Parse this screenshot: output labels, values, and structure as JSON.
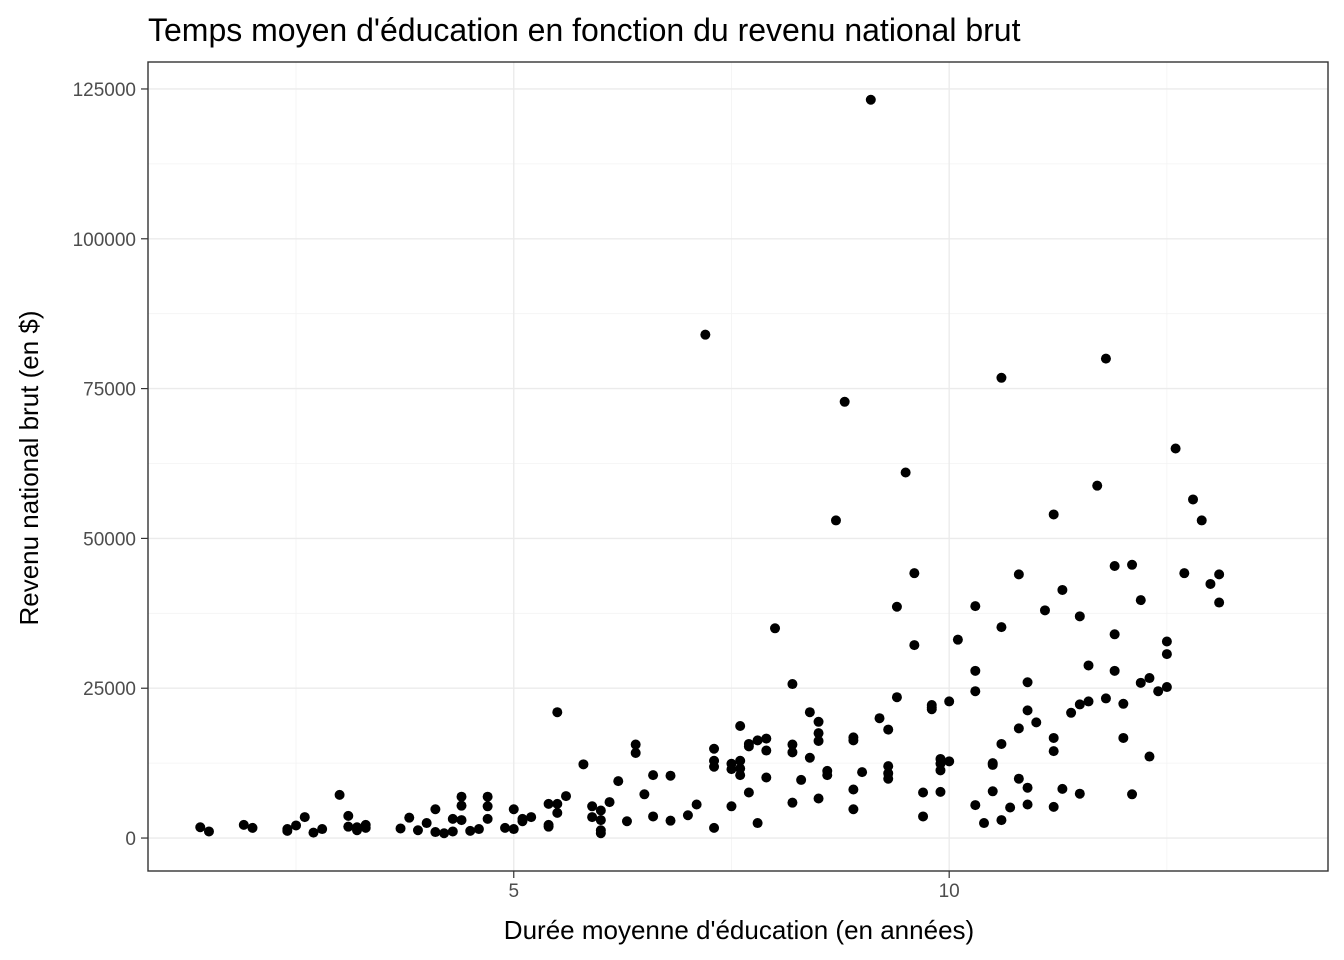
{
  "chart_data": {
    "type": "scatter",
    "title": "Temps moyen d'éducation en fonction du revenu national brut",
    "xlabel": "Durée moyenne d'éducation (en années)",
    "ylabel": "Revenu national brut (en $)",
    "xlim": [
      0.8,
      14.35
    ],
    "ylim": [
      -5500,
      129500
    ],
    "x_ticks": [
      5,
      10
    ],
    "x_tick_labels": [
      "5",
      "10"
    ],
    "y_ticks": [
      0,
      25000,
      50000,
      75000,
      100000,
      125000
    ],
    "y_tick_labels": [
      "0",
      "25000",
      "50000",
      "75000",
      "100000",
      "125000"
    ],
    "grid": true,
    "points": [
      [
        1.4,
        1800
      ],
      [
        1.5,
        1100
      ],
      [
        1.9,
        2200
      ],
      [
        2.0,
        1700
      ],
      [
        2.4,
        1500
      ],
      [
        2.4,
        1200
      ],
      [
        2.5,
        2100
      ],
      [
        2.6,
        3500
      ],
      [
        2.7,
        900
      ],
      [
        2.8,
        1500
      ],
      [
        3.0,
        7200
      ],
      [
        3.1,
        1900
      ],
      [
        3.1,
        3700
      ],
      [
        3.2,
        1300
      ],
      [
        3.2,
        1800
      ],
      [
        3.3,
        2200
      ],
      [
        3.3,
        1700
      ],
      [
        3.7,
        1600
      ],
      [
        3.8,
        3400
      ],
      [
        3.9,
        1300
      ],
      [
        4.0,
        2500
      ],
      [
        4.1,
        4800
      ],
      [
        4.1,
        1000
      ],
      [
        4.2,
        800
      ],
      [
        4.3,
        1100
      ],
      [
        4.3,
        3200
      ],
      [
        4.4,
        6900
      ],
      [
        4.4,
        5400
      ],
      [
        4.4,
        3000
      ],
      [
        4.5,
        1200
      ],
      [
        4.6,
        1500
      ],
      [
        4.7,
        6900
      ],
      [
        4.7,
        5300
      ],
      [
        4.7,
        3200
      ],
      [
        4.9,
        1700
      ],
      [
        5.0,
        4800
      ],
      [
        5.0,
        1500
      ],
      [
        5.1,
        3200
      ],
      [
        5.1,
        2800
      ],
      [
        5.2,
        3500
      ],
      [
        5.4,
        5700
      ],
      [
        5.4,
        2200
      ],
      [
        5.4,
        1900
      ],
      [
        5.5,
        21000
      ],
      [
        5.5,
        5700
      ],
      [
        5.5,
        4200
      ],
      [
        5.6,
        7000
      ],
      [
        5.8,
        12300
      ],
      [
        5.9,
        5300
      ],
      [
        5.9,
        3500
      ],
      [
        6.0,
        4600
      ],
      [
        6.0,
        3000
      ],
      [
        6.0,
        1300
      ],
      [
        6.0,
        800
      ],
      [
        6.1,
        6000
      ],
      [
        6.2,
        9500
      ],
      [
        6.3,
        2800
      ],
      [
        6.4,
        15600
      ],
      [
        6.4,
        14200
      ],
      [
        6.5,
        7300
      ],
      [
        6.6,
        10500
      ],
      [
        6.6,
        3600
      ],
      [
        6.8,
        10400
      ],
      [
        6.8,
        2900
      ],
      [
        7.0,
        3800
      ],
      [
        7.1,
        5600
      ],
      [
        7.2,
        84000
      ],
      [
        7.3,
        14900
      ],
      [
        7.3,
        12900
      ],
      [
        7.3,
        11900
      ],
      [
        7.3,
        1700
      ],
      [
        7.5,
        12400
      ],
      [
        7.5,
        11500
      ],
      [
        7.5,
        5300
      ],
      [
        7.6,
        18700
      ],
      [
        7.6,
        12900
      ],
      [
        7.6,
        11600
      ],
      [
        7.6,
        10500
      ],
      [
        7.7,
        15700
      ],
      [
        7.7,
        15300
      ],
      [
        7.7,
        7600
      ],
      [
        7.8,
        16300
      ],
      [
        7.8,
        2500
      ],
      [
        7.9,
        16600
      ],
      [
        7.9,
        14600
      ],
      [
        7.9,
        10100
      ],
      [
        8.0,
        35000
      ],
      [
        8.2,
        25700
      ],
      [
        8.2,
        15600
      ],
      [
        8.2,
        14300
      ],
      [
        8.2,
        5900
      ],
      [
        8.3,
        9700
      ],
      [
        8.4,
        21000
      ],
      [
        8.4,
        13400
      ],
      [
        8.5,
        19400
      ],
      [
        8.5,
        17500
      ],
      [
        8.5,
        16200
      ],
      [
        8.5,
        6600
      ],
      [
        8.6,
        11200
      ],
      [
        8.6,
        10500
      ],
      [
        8.7,
        53000
      ],
      [
        8.8,
        72800
      ],
      [
        8.9,
        16800
      ],
      [
        8.9,
        16300
      ],
      [
        8.9,
        8100
      ],
      [
        8.9,
        4800
      ],
      [
        9.0,
        11000
      ],
      [
        9.1,
        123200
      ],
      [
        9.2,
        20000
      ],
      [
        9.3,
        18100
      ],
      [
        9.3,
        12000
      ],
      [
        9.3,
        10800
      ],
      [
        9.3,
        9900
      ],
      [
        9.4,
        38600
      ],
      [
        9.4,
        23500
      ],
      [
        9.5,
        61000
      ],
      [
        9.6,
        44200
      ],
      [
        9.6,
        32200
      ],
      [
        9.7,
        7600
      ],
      [
        9.7,
        3600
      ],
      [
        9.8,
        22200
      ],
      [
        9.8,
        21500
      ],
      [
        9.8,
        21800
      ],
      [
        9.9,
        13200
      ],
      [
        9.9,
        12400
      ],
      [
        9.9,
        11300
      ],
      [
        9.9,
        7700
      ],
      [
        10.0,
        22800
      ],
      [
        10.0,
        12800
      ],
      [
        10.1,
        33100
      ],
      [
        10.3,
        38700
      ],
      [
        10.3,
        27900
      ],
      [
        10.3,
        24500
      ],
      [
        10.3,
        5500
      ],
      [
        10.4,
        2500
      ],
      [
        10.5,
        12500
      ],
      [
        10.5,
        12200
      ],
      [
        10.5,
        7800
      ],
      [
        10.6,
        76800
      ],
      [
        10.6,
        35200
      ],
      [
        10.6,
        15700
      ],
      [
        10.6,
        3000
      ],
      [
        10.7,
        5100
      ],
      [
        10.8,
        44000
      ],
      [
        10.8,
        18300
      ],
      [
        10.8,
        9900
      ],
      [
        10.9,
        26000
      ],
      [
        10.9,
        21300
      ],
      [
        10.9,
        8400
      ],
      [
        10.9,
        5600
      ],
      [
        11.0,
        19300
      ],
      [
        11.1,
        38000
      ],
      [
        11.2,
        54000
      ],
      [
        11.2,
        16700
      ],
      [
        11.2,
        14500
      ],
      [
        11.2,
        5200
      ],
      [
        11.3,
        41400
      ],
      [
        11.3,
        8200
      ],
      [
        11.4,
        20900
      ],
      [
        11.5,
        37000
      ],
      [
        11.5,
        22300
      ],
      [
        11.5,
        7400
      ],
      [
        11.6,
        28800
      ],
      [
        11.6,
        22800
      ],
      [
        11.7,
        58800
      ],
      [
        11.8,
        80000
      ],
      [
        11.8,
        23300
      ],
      [
        11.9,
        45400
      ],
      [
        11.9,
        34000
      ],
      [
        11.9,
        27900
      ],
      [
        12.0,
        22400
      ],
      [
        12.0,
        16700
      ],
      [
        12.1,
        45600
      ],
      [
        12.1,
        7300
      ],
      [
        12.2,
        39700
      ],
      [
        12.2,
        25900
      ],
      [
        12.3,
        26700
      ],
      [
        12.3,
        13600
      ],
      [
        12.4,
        24500
      ],
      [
        12.5,
        32800
      ],
      [
        12.5,
        30700
      ],
      [
        12.5,
        25200
      ],
      [
        12.6,
        65000
      ],
      [
        12.7,
        44200
      ],
      [
        12.8,
        56500
      ],
      [
        12.9,
        53000
      ],
      [
        13.0,
        42400
      ],
      [
        13.1,
        44000
      ],
      [
        13.1,
        39300
      ]
    ]
  }
}
